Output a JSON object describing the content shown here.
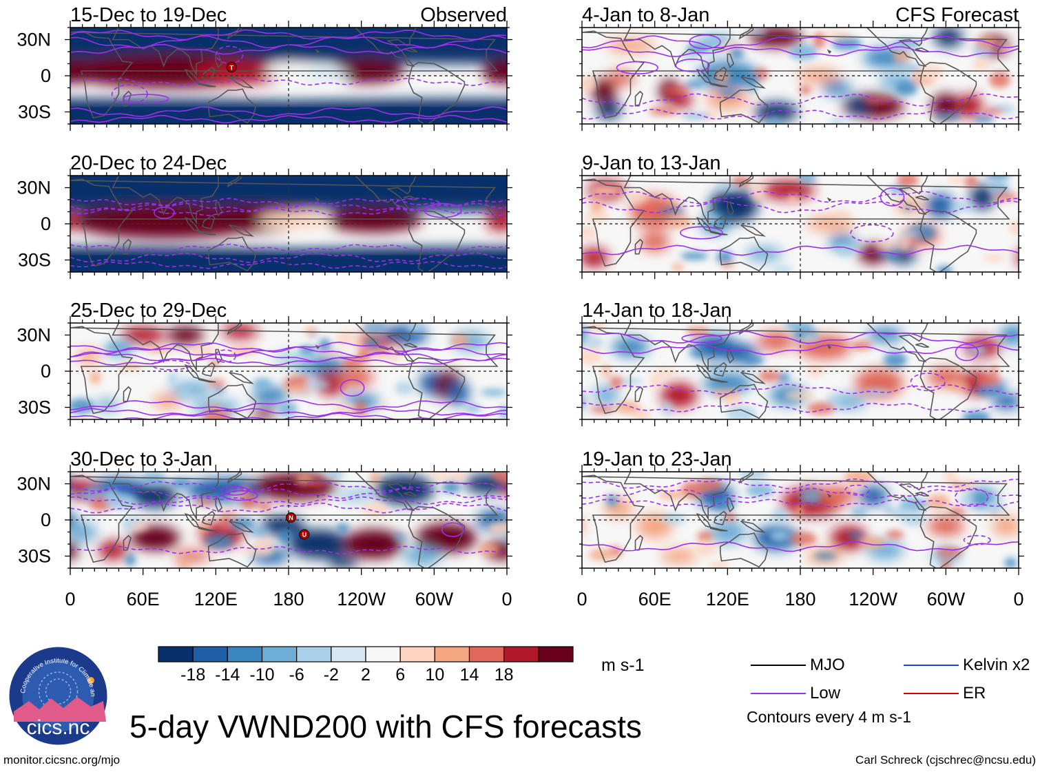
{
  "title": "5-day VWND200 with CFS forecasts",
  "url": "monitor.cicsnc.org/mjo",
  "credit": "Carl Schreck (cjschrec@ncsu.edu)",
  "logo": {
    "text": "cics.nc",
    "ring_text": "Cooperative Institute for Climate and Satellites"
  },
  "columns": [
    {
      "header": "Observed"
    },
    {
      "header": "CFS Forecast"
    }
  ],
  "panels": [
    {
      "period": "15-Dec to 19-Dec",
      "column": 0,
      "row": 0
    },
    {
      "period": "20-Dec to 24-Dec",
      "column": 0,
      "row": 1
    },
    {
      "period": "25-Dec to 29-Dec",
      "column": 0,
      "row": 2
    },
    {
      "period": "30-Dec to 3-Jan",
      "column": 0,
      "row": 3
    },
    {
      "period": "4-Jan to 8-Jan",
      "column": 1,
      "row": 0
    },
    {
      "period": "9-Jan to 13-Jan",
      "column": 1,
      "row": 1
    },
    {
      "period": "14-Jan to 18-Jan",
      "column": 1,
      "row": 2
    },
    {
      "period": "19-Jan to 23-Jan",
      "column": 1,
      "row": 3
    }
  ],
  "y_ticks": [
    "30N",
    "0",
    "30S"
  ],
  "x_ticks": [
    "0",
    "60E",
    "120E",
    "180",
    "120W",
    "60W",
    "0"
  ],
  "storm_markers": [
    {
      "label": "T",
      "panel": 0,
      "lon": 133,
      "lat": 7
    },
    {
      "label": "N",
      "panel": 3,
      "lon": 182,
      "lat": 2
    },
    {
      "label": "U",
      "panel": 3,
      "lon": 193,
      "lat": -12
    }
  ],
  "colorbar": {
    "units": "m s-1",
    "labels": [
      "-18",
      "-14",
      "-10",
      "-6",
      "-2",
      "2",
      "6",
      "10",
      "14",
      "18"
    ],
    "colors": [
      "#08306b",
      "#1f5fa8",
      "#3a86c0",
      "#6eadd6",
      "#a9d0e8",
      "#d6e8f3",
      "#f7f7f7",
      "#fcd4c0",
      "#f4a582",
      "#e0685a",
      "#b2182b",
      "#67001f"
    ]
  },
  "legend": {
    "items": [
      {
        "label": "MJO",
        "color": "#000000"
      },
      {
        "label": "Kelvin x2",
        "color": "#1f3fd8"
      },
      {
        "label": "Low",
        "color": "#9b30e8"
      },
      {
        "label": "ER",
        "color": "#d40000"
      }
    ],
    "note": "Contours every 4 m s-1"
  },
  "colors": {
    "low_contour": "#9b30e8",
    "coast": "#555555",
    "land_dash": "#333333"
  }
}
